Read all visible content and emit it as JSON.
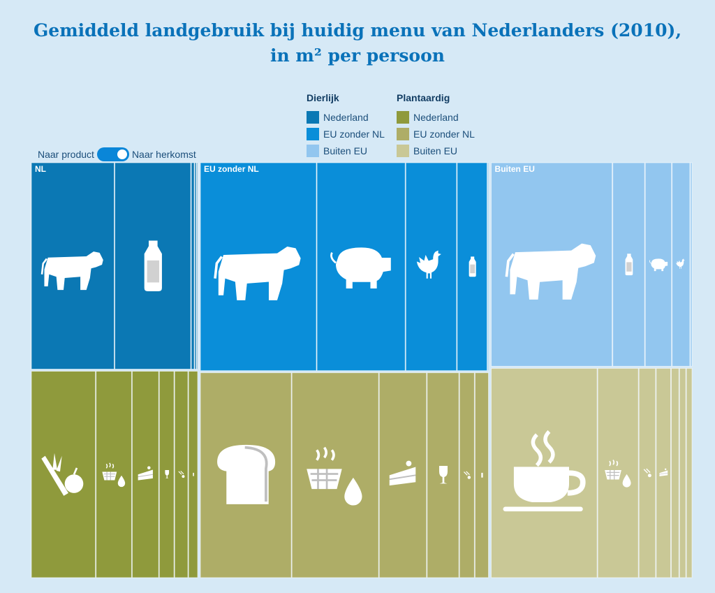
{
  "title": {
    "line1": "Gemiddeld landgebruik bij huidig menu van Nederlanders (2010),",
    "line2": "in m² per persoon"
  },
  "legend": {
    "animal": {
      "heading": "Dierlijk",
      "items": [
        {
          "label": "Nederland",
          "color": "#0b78b4"
        },
        {
          "label": "EU zonder NL",
          "color": "#0a8ed9"
        },
        {
          "label": "Buiten EU",
          "color": "#92c6ef"
        }
      ]
    },
    "plant": {
      "heading": "Plantaardig",
      "items": [
        {
          "label": "Nederland",
          "color": "#8f9a3c"
        },
        {
          "label": "EU zonder NL",
          "color": "#aead67"
        },
        {
          "label": "Buiten EU",
          "color": "#c9c896"
        }
      ]
    }
  },
  "toggle": {
    "left_label": "Naar product",
    "right_label": "Naar herkomst"
  },
  "chart_data": {
    "type": "treemap",
    "regions": [
      {
        "label": "NL",
        "animal_color": "#0b78b4",
        "plant_color": "#8f9a3c",
        "animal": [
          {
            "product": "rundvlees",
            "icon": "cow-icon",
            "value": 120
          },
          {
            "product": "zuivel",
            "icon": "milk-bottle-icon",
            "value": 110
          },
          {
            "product": "overig-1",
            "icon": "",
            "value": 5
          },
          {
            "product": "overig-2",
            "icon": "",
            "value": 3
          },
          {
            "product": "overig-3",
            "icon": "",
            "value": 2
          }
        ],
        "plant": [
          {
            "product": "groente en fruit",
            "icon": "vegetables-icon",
            "value": 93
          },
          {
            "product": "oliën en vetten",
            "icon": "oil-basket-icon",
            "value": 52
          },
          {
            "product": "zoetwaren",
            "icon": "cake-icon",
            "value": 39
          },
          {
            "product": "dranken",
            "icon": "wine-glass-icon",
            "value": 22
          },
          {
            "product": "overig-1",
            "icon": "sauce-icon",
            "value": 20
          },
          {
            "product": "overig-2",
            "icon": "small-icon",
            "value": 14
          }
        ]
      },
      {
        "label": "EU zonder NL",
        "animal_color": "#0a8ed9",
        "plant_color": "#aead67",
        "animal": [
          {
            "product": "rundvlees",
            "icon": "cow-icon",
            "value": 168
          },
          {
            "product": "varkensvlees",
            "icon": "pig-icon",
            "value": 128
          },
          {
            "product": "kip",
            "icon": "chicken-icon",
            "value": 74
          },
          {
            "product": "zuivel",
            "icon": "milk-bottle-icon",
            "value": 44
          },
          {
            "product": "overig",
            "icon": "",
            "value": 2
          }
        ],
        "plant": [
          {
            "product": "brood en granen",
            "icon": "bread-icon",
            "value": 130
          },
          {
            "product": "oliën en vetten",
            "icon": "oil-basket-icon",
            "value": 124
          },
          {
            "product": "zoetwaren",
            "icon": "cake-icon",
            "value": 68
          },
          {
            "product": "dranken",
            "icon": "wine-glass-icon",
            "value": 46
          },
          {
            "product": "overig-1",
            "icon": "sauce-icon",
            "value": 22
          },
          {
            "product": "overig-2",
            "icon": "small-icon",
            "value": 20
          }
        ]
      },
      {
        "label": "Buiten EU",
        "animal_color": "#92c6ef",
        "plant_color": "#c9c896",
        "animal": [
          {
            "product": "rundvlees",
            "icon": "cow-icon",
            "value": 172
          },
          {
            "product": "zuivel",
            "icon": "milk-bottle-icon",
            "value": 46
          },
          {
            "product": "varkensvlees",
            "icon": "pig-icon",
            "value": 38
          },
          {
            "product": "kip",
            "icon": "chicken-icon",
            "value": 26
          },
          {
            "product": "overig",
            "icon": "",
            "value": 3
          }
        ],
        "plant": [
          {
            "product": "koffie en thee",
            "icon": "coffee-cup-icon",
            "value": 155
          },
          {
            "product": "oliën en vetten",
            "icon": "oil-basket-icon",
            "value": 60
          },
          {
            "product": "overig-1",
            "icon": "sauce-icon",
            "value": 25
          },
          {
            "product": "overig-2",
            "icon": "cake-icon",
            "value": 22
          },
          {
            "product": "overig-3",
            "icon": "",
            "value": 12
          },
          {
            "product": "overig-4",
            "icon": "",
            "value": 10
          },
          {
            "product": "overig-5",
            "icon": "",
            "value": 9
          }
        ]
      }
    ]
  }
}
